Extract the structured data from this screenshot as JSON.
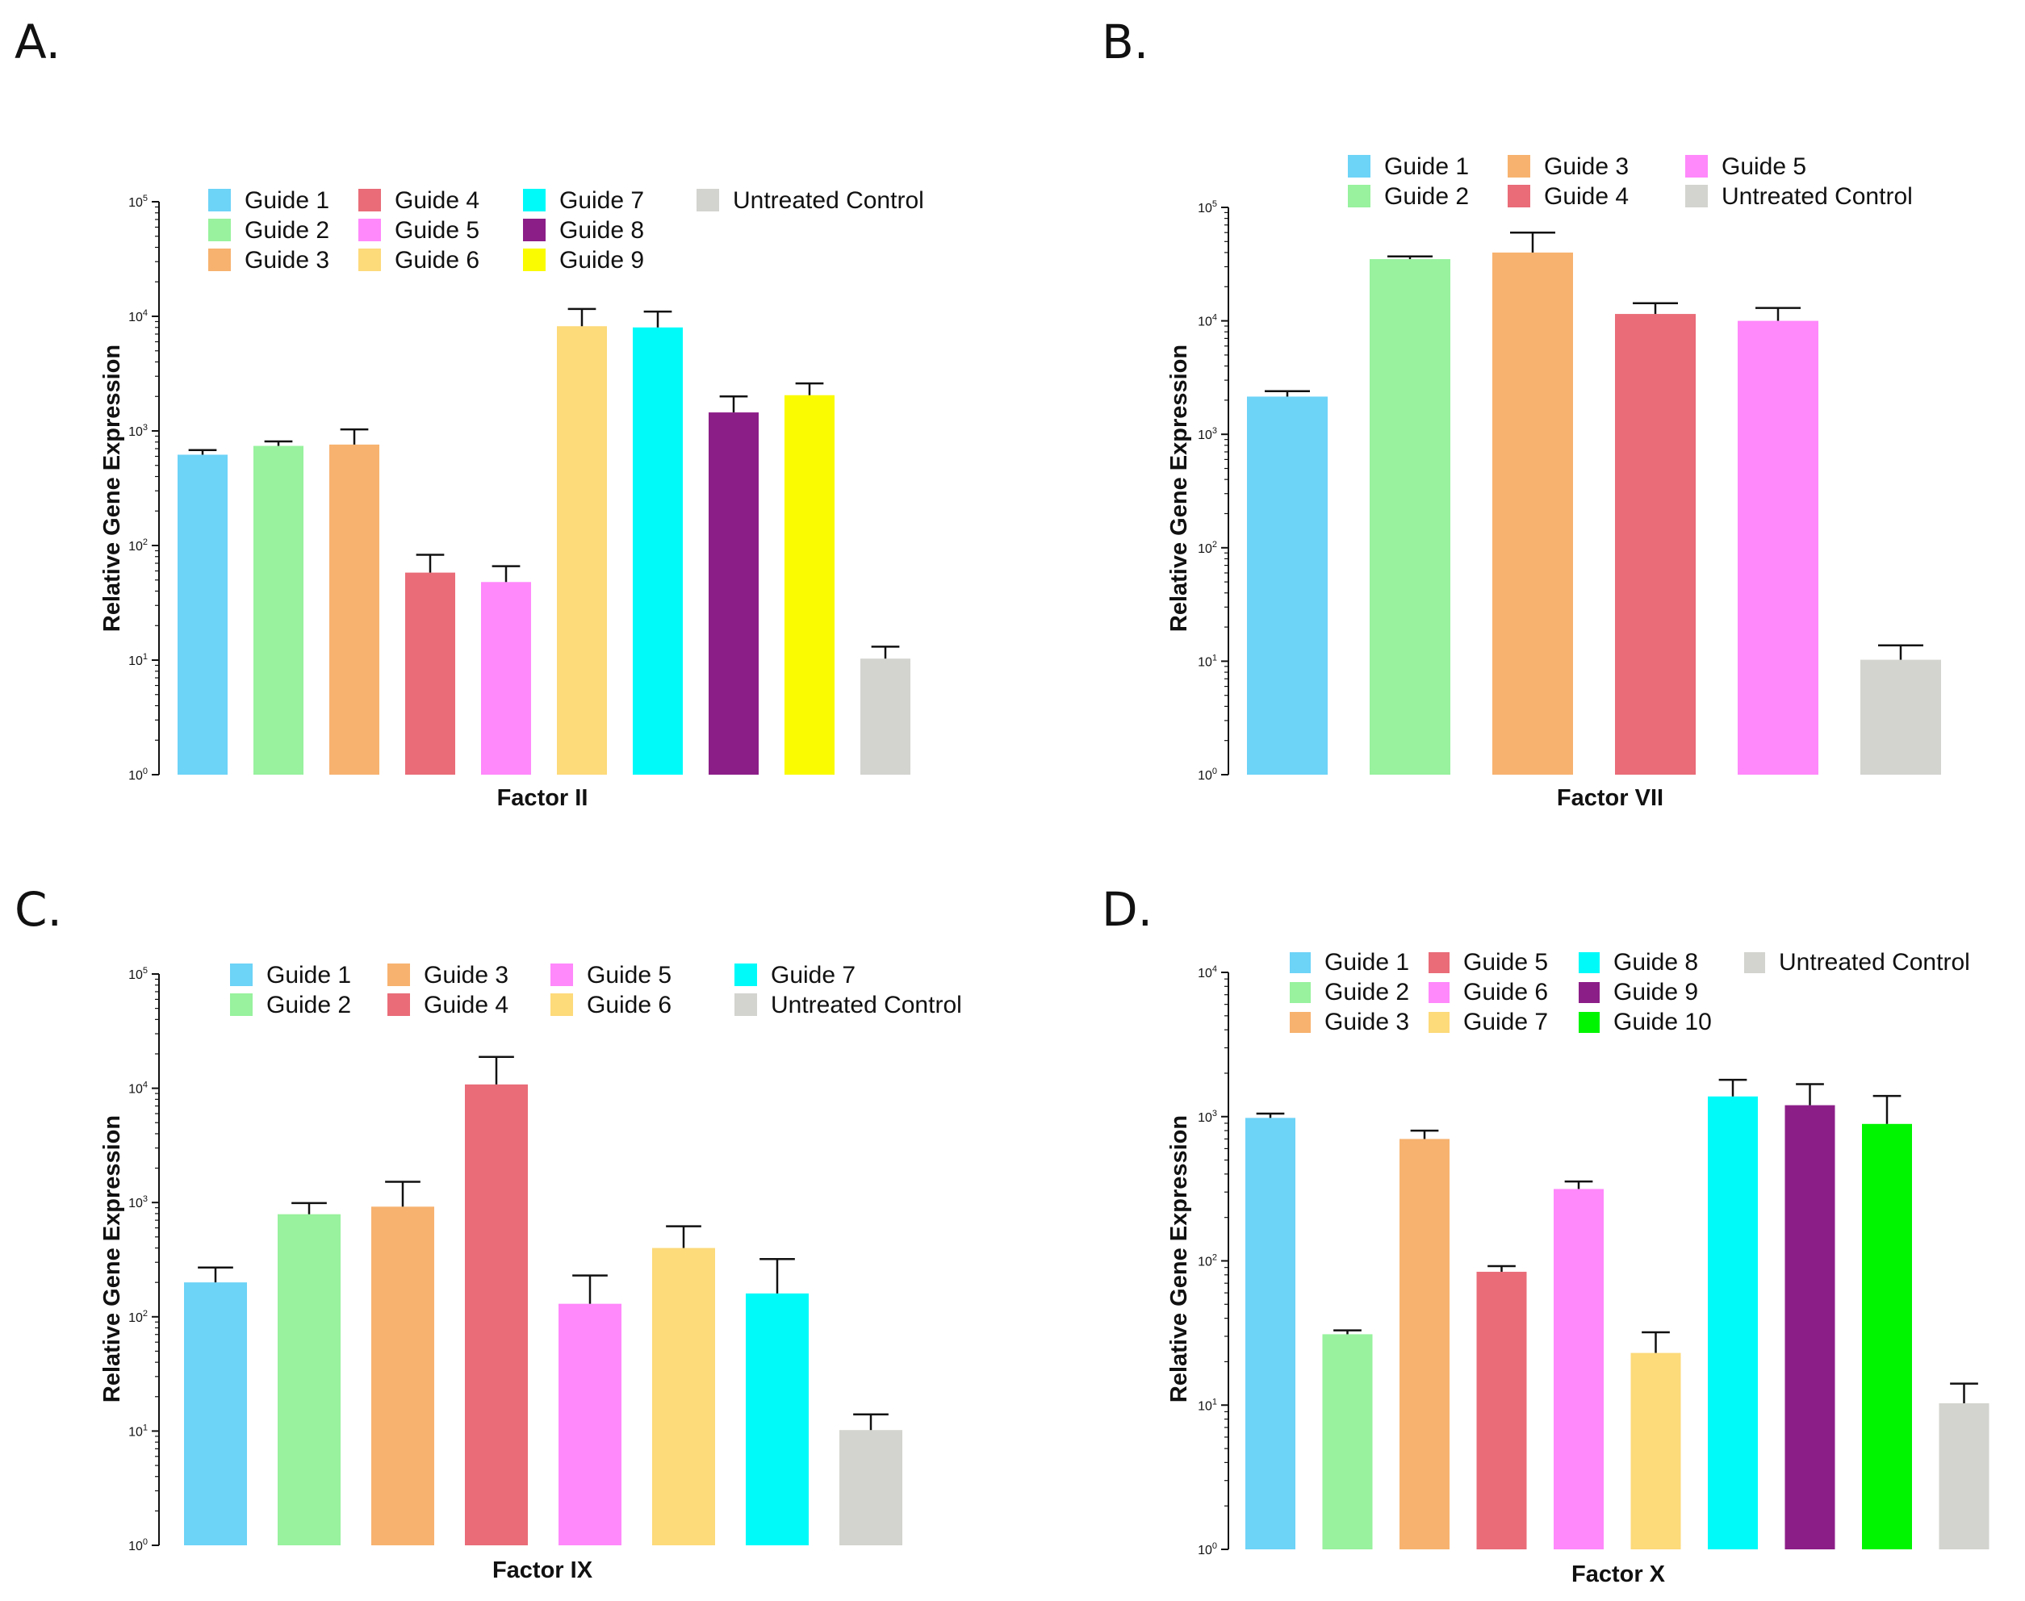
{
  "figure_title": "",
  "chart_data": [
    {
      "panel": "A.",
      "type": "bar",
      "scale": "log",
      "title": "",
      "xlabel": "Factor II",
      "ylabel": "Relative Gene Expression",
      "ylim": [
        1,
        100000
      ],
      "tick_values": [
        1,
        10,
        100,
        1000,
        10000,
        100000
      ],
      "tick_labels": [
        {
          "base": "10",
          "exp": "0"
        },
        {
          "base": "10",
          "exp": "1"
        },
        {
          "base": "10",
          "exp": "2"
        },
        {
          "base": "10",
          "exp": "3"
        },
        {
          "base": "10",
          "exp": "4"
        },
        {
          "base": "10",
          "exp": "5"
        }
      ],
      "series": [
        {
          "name": "Guide 1",
          "value": 620,
          "error": 60,
          "color": "#6dd3f7"
        },
        {
          "name": "Guide 2",
          "value": 740,
          "error": 70,
          "color": "#98f29e"
        },
        {
          "name": "Guide 3",
          "value": 760,
          "error": 270,
          "color": "#f7b26f"
        },
        {
          "name": "Guide 4",
          "value": 58,
          "error": 25,
          "color": "#e96c78"
        },
        {
          "name": "Guide 5",
          "value": 48,
          "error": 18,
          "color": "#ff88fb"
        },
        {
          "name": "Guide 6",
          "value": 8200,
          "error": 3400,
          "color": "#fdda7a"
        },
        {
          "name": "Guide 7",
          "value": 8000,
          "error": 3000,
          "color": "#00fafa"
        },
        {
          "name": "Guide 8",
          "value": 1450,
          "error": 550,
          "color": "#8c1e88"
        },
        {
          "name": "Guide 9",
          "value": 2050,
          "error": 550,
          "color": "#fafa00"
        },
        {
          "name": "Untreated Control",
          "value": 10.3,
          "error": 2.8,
          "color": "#d3d3cf"
        }
      ],
      "legend": [
        [
          "Guide 1",
          "Guide 4",
          "Guide 7",
          "Untreated Control"
        ],
        [
          "Guide 2",
          "Guide 5",
          "Guide 8"
        ],
        [
          "Guide 3",
          "Guide 6",
          "Guide 9"
        ]
      ],
      "legend_placement": "top"
    },
    {
      "panel": "B.",
      "type": "bar",
      "scale": "log",
      "title": "",
      "xlabel": "Factor VII",
      "ylabel": "Relative Gene Expression",
      "ylim": [
        1,
        100000
      ],
      "tick_values": [
        1,
        10,
        100,
        1000,
        10000,
        100000
      ],
      "tick_labels": [
        {
          "base": "10",
          "exp": "0"
        },
        {
          "base": "10",
          "exp": "1"
        },
        {
          "base": "10",
          "exp": "2"
        },
        {
          "base": "10",
          "exp": "3"
        },
        {
          "base": "10",
          "exp": "4"
        },
        {
          "base": "10",
          "exp": "5"
        }
      ],
      "series": [
        {
          "name": "Guide 1",
          "value": 2150,
          "error": 250,
          "color": "#6dd3f7"
        },
        {
          "name": "Guide 2",
          "value": 35000,
          "error": 2000,
          "color": "#98f29e"
        },
        {
          "name": "Guide 3",
          "value": 40000,
          "error": 20000,
          "color": "#f7b26f"
        },
        {
          "name": "Guide 4",
          "value": 11500,
          "error": 2800,
          "color": "#e96c78"
        },
        {
          "name": "Guide 5",
          "value": 10000,
          "error": 3000,
          "color": "#ff88fb"
        },
        {
          "name": "Untreated Control",
          "value": 10.3,
          "error": 3.5,
          "color": "#d3d3cf"
        }
      ],
      "legend": [
        [
          "Guide 1",
          "Guide 3",
          "Guide 5"
        ],
        [
          "Guide 2",
          "Guide 4",
          "Untreated Control"
        ]
      ],
      "legend_placement": "top"
    },
    {
      "panel": "C.",
      "type": "bar",
      "scale": "log",
      "title": "",
      "xlabel": "Factor IX",
      "ylabel": "Relative Gene Expression",
      "ylim": [
        1,
        100000
      ],
      "tick_values": [
        1,
        10,
        100,
        1000,
        10000,
        100000
      ],
      "tick_labels": [
        {
          "base": "10",
          "exp": "0"
        },
        {
          "base": "10",
          "exp": "1"
        },
        {
          "base": "10",
          "exp": "2"
        },
        {
          "base": "10",
          "exp": "3"
        },
        {
          "base": "10",
          "exp": "4"
        },
        {
          "base": "10",
          "exp": "5"
        }
      ],
      "series": [
        {
          "name": "Guide 1",
          "value": 200,
          "error": 70,
          "color": "#6dd3f7"
        },
        {
          "name": "Guide 2",
          "value": 790,
          "error": 200,
          "color": "#98f29e"
        },
        {
          "name": "Guide 3",
          "value": 920,
          "error": 600,
          "color": "#f7b26f"
        },
        {
          "name": "Guide 4",
          "value": 10800,
          "error": 8000,
          "color": "#e96c78"
        },
        {
          "name": "Guide 5",
          "value": 130,
          "error": 100,
          "color": "#ff88fb"
        },
        {
          "name": "Guide 6",
          "value": 400,
          "error": 220,
          "color": "#fdda7a"
        },
        {
          "name": "Guide 7",
          "value": 160,
          "error": 160,
          "color": "#00fafa"
        },
        {
          "name": "Untreated Control",
          "value": 10.2,
          "error": 3.8,
          "color": "#d3d3cf"
        }
      ],
      "legend": [
        [
          "Guide 1",
          "Guide 3",
          "Guide 5",
          "Guide 7"
        ],
        [
          "Guide 2",
          "Guide 4",
          "Guide 6",
          "Untreated Control"
        ]
      ],
      "legend_placement": "top"
    },
    {
      "panel": "D.",
      "type": "bar",
      "scale": "log",
      "title": "",
      "xlabel": "Factor X",
      "ylabel": "Relative Gene Expression",
      "ylim": [
        1,
        10000
      ],
      "tick_values": [
        1,
        10,
        100,
        1000,
        10000
      ],
      "tick_labels": [
        {
          "base": "10",
          "exp": "0"
        },
        {
          "base": "10",
          "exp": "1"
        },
        {
          "base": "10",
          "exp": "2"
        },
        {
          "base": "10",
          "exp": "3"
        },
        {
          "base": "10",
          "exp": "4"
        }
      ],
      "series": [
        {
          "name": "Guide 1",
          "value": 980,
          "error": 70,
          "color": "#6dd3f7"
        },
        {
          "name": "Guide 2",
          "value": 31,
          "error": 2,
          "color": "#98f29e"
        },
        {
          "name": "Guide 3",
          "value": 700,
          "error": 100,
          "color": "#f7b26f"
        },
        {
          "name": "Guide 5",
          "value": 84,
          "error": 8,
          "color": "#e96c78"
        },
        {
          "name": "Guide 6",
          "value": 315,
          "error": 40,
          "color": "#ff88fb"
        },
        {
          "name": "Guide 7",
          "value": 23,
          "error": 9,
          "color": "#fdda7a"
        },
        {
          "name": "Guide 8",
          "value": 1380,
          "error": 420,
          "color": "#00fafa"
        },
        {
          "name": "Guide 9",
          "value": 1200,
          "error": 480,
          "color": "#8c1e88"
        },
        {
          "name": "Guide 10",
          "value": 890,
          "error": 500,
          "color": "#00f500"
        },
        {
          "name": "Untreated Control",
          "value": 10.3,
          "error": 3.8,
          "color": "#d3d3cf"
        }
      ],
      "legend": [
        [
          "Guide 1",
          "Guide 5",
          "Guide 8",
          "Untreated Control"
        ],
        [
          "Guide 2",
          "Guide 6",
          "Guide 9"
        ],
        [
          "Guide 3",
          "Guide 7",
          "Guide 10"
        ]
      ],
      "legend_placement": "top"
    }
  ]
}
